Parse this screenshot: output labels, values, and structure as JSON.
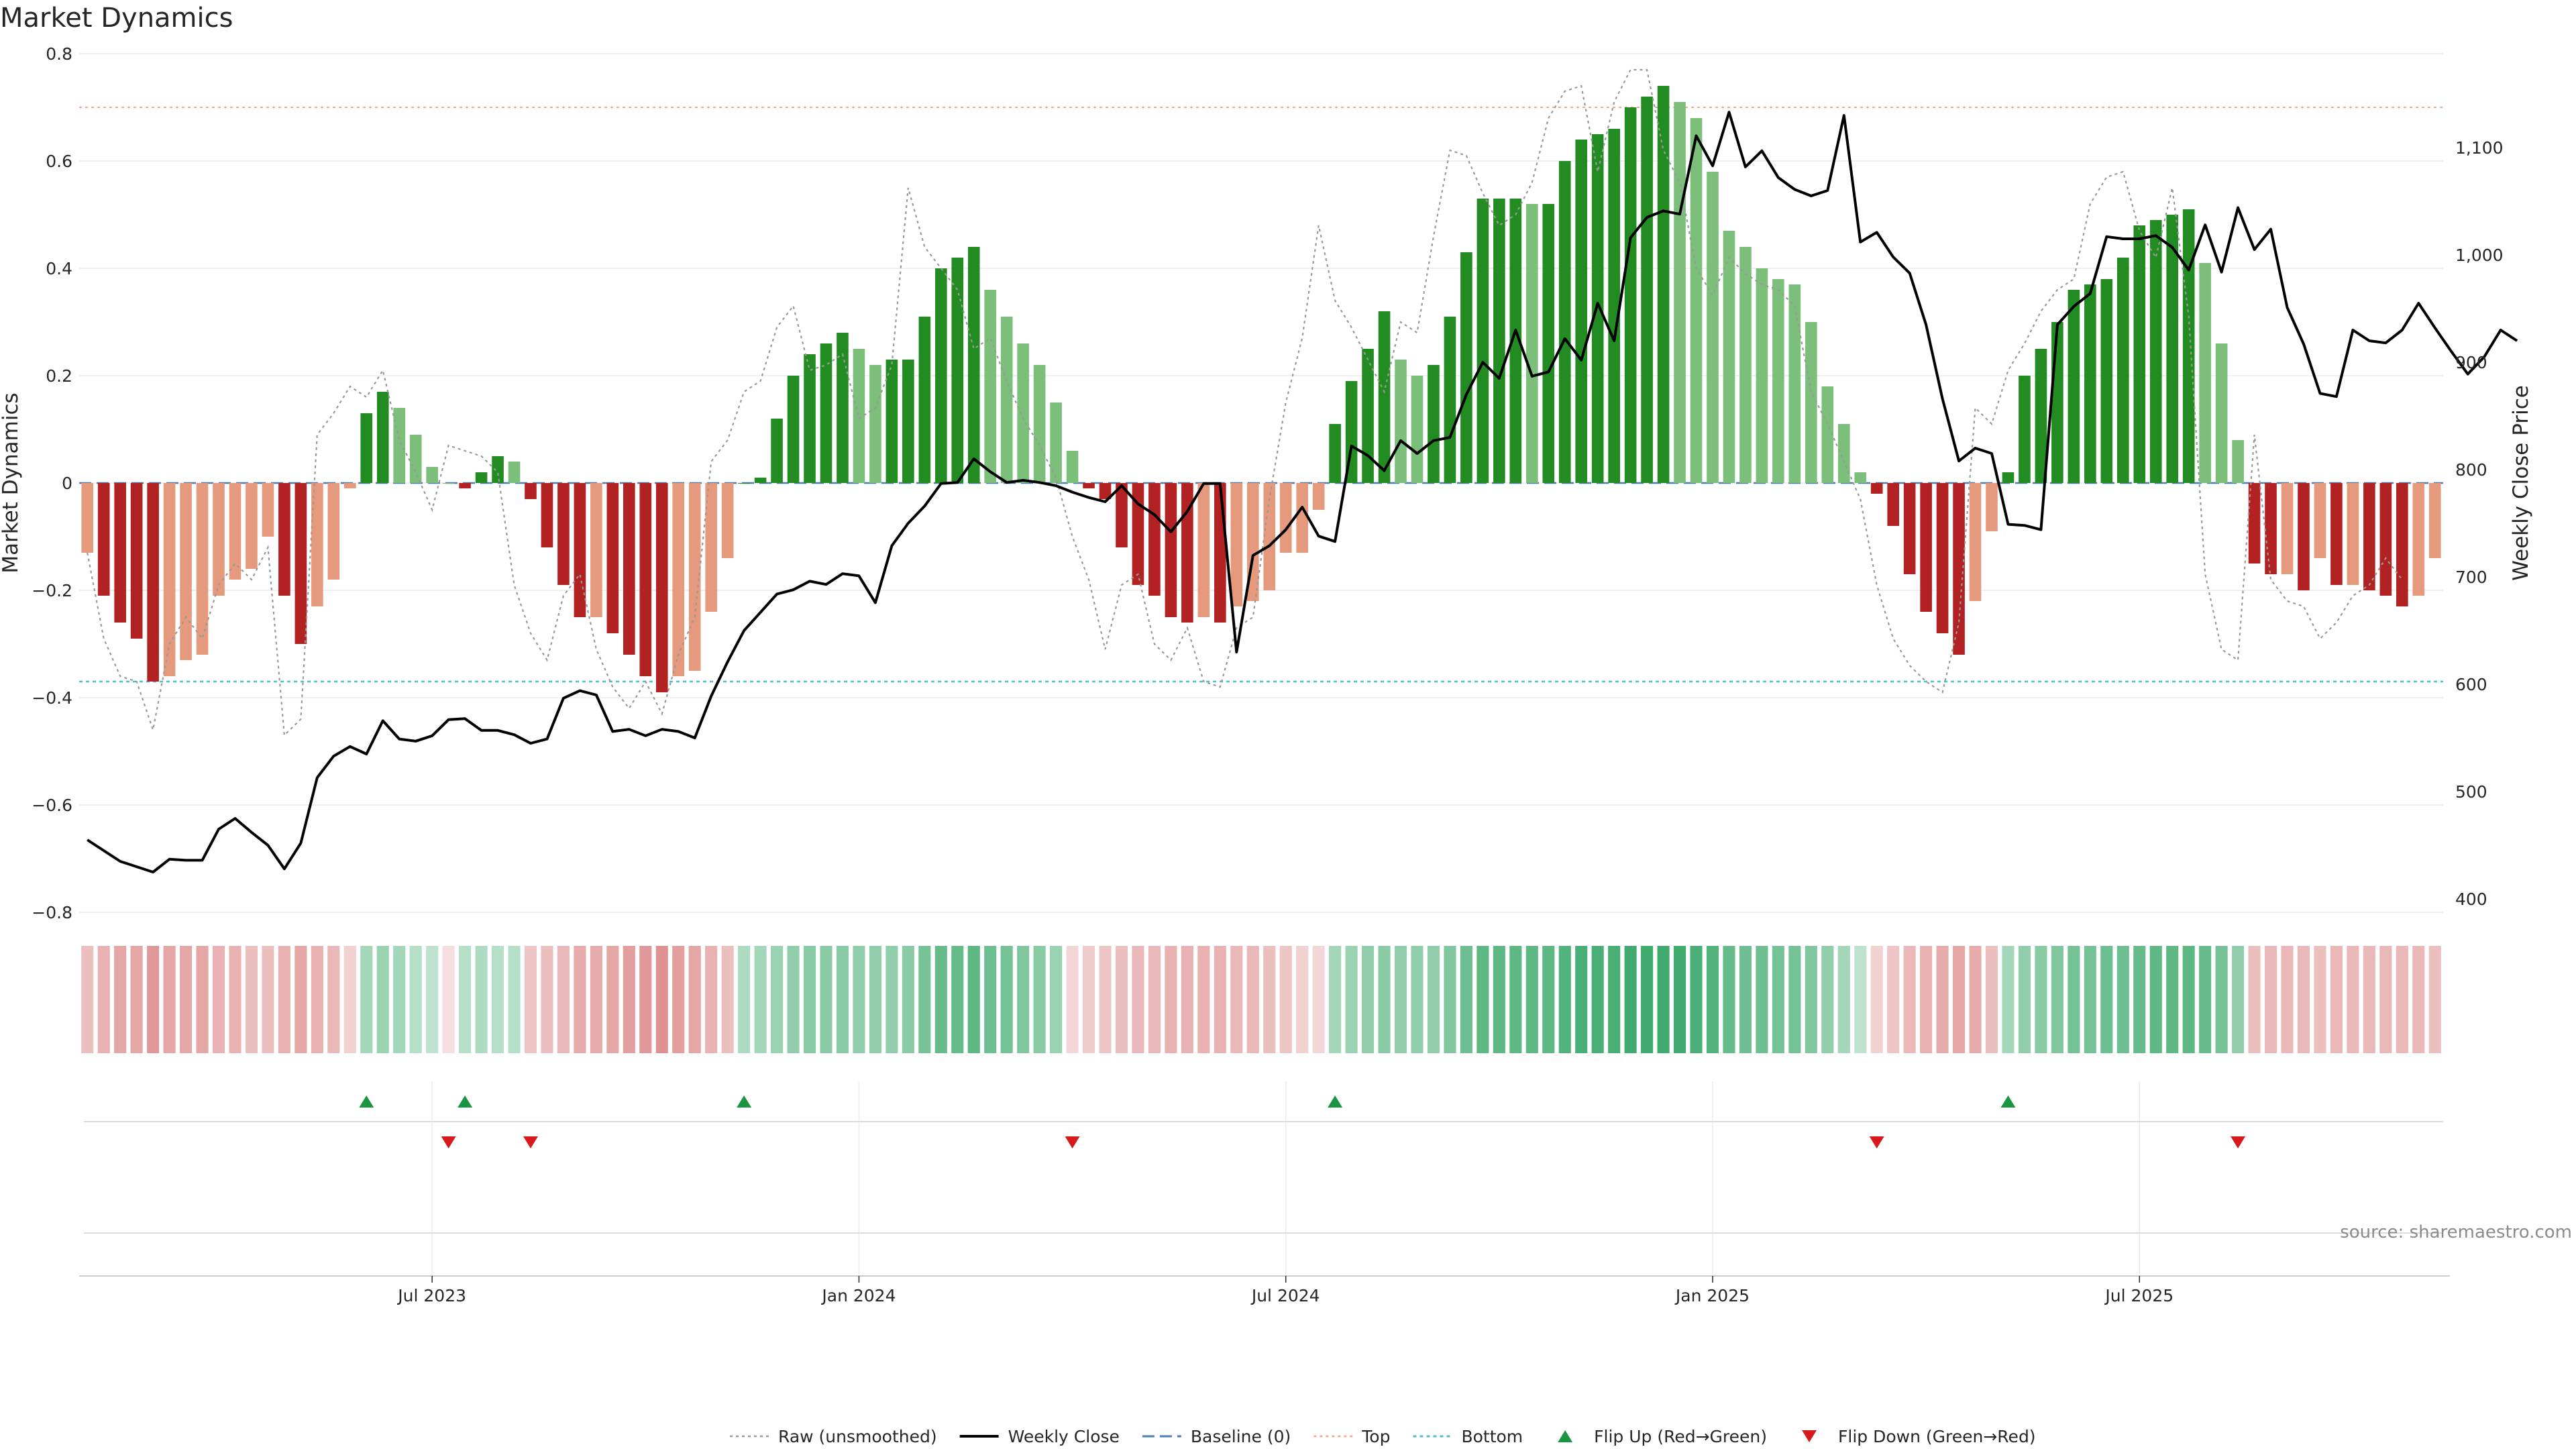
{
  "chart_data": {
    "type": "bar",
    "title": "Market Dynamics",
    "ylabel_left": "Market Dynamics",
    "ylabel_right": "Weekly Close Price",
    "ylim_left": [
      -0.8,
      0.8
    ],
    "ylim_right": [
      400,
      1150
    ],
    "yticks_left": [
      {
        "v": 0.8,
        "label": "0.8"
      },
      {
        "v": 0.6,
        "label": "0.6"
      },
      {
        "v": 0.4,
        "label": "0.4"
      },
      {
        "v": 0.2,
        "label": "0.2"
      },
      {
        "v": 0,
        "label": "0"
      },
      {
        "v": -0.2,
        "label": "−0.2"
      },
      {
        "v": -0.4,
        "label": "−0.4"
      },
      {
        "v": -0.6,
        "label": "−0.6"
      },
      {
        "v": -0.8,
        "label": "−0.8"
      }
    ],
    "yticks_right": [
      {
        "v": 1100,
        "label": "1,100"
      },
      {
        "v": 1000,
        "label": "1,000"
      },
      {
        "v": 900,
        "label": "900"
      },
      {
        "v": 800,
        "label": "800"
      },
      {
        "v": 700,
        "label": "700"
      },
      {
        "v": 600,
        "label": "600"
      },
      {
        "v": 500,
        "label": "500"
      },
      {
        "v": 400,
        "label": "400"
      }
    ],
    "x_ticks": [
      {
        "index": 21,
        "label": "Jul 2023"
      },
      {
        "index": 47,
        "label": "Jan 2024"
      },
      {
        "index": 73,
        "label": "Jul 2024"
      },
      {
        "index": 99,
        "label": "Jan 2025"
      },
      {
        "index": 125,
        "label": "Jul 2025"
      }
    ],
    "grid": true,
    "legend_position": "bottom",
    "top_level": 0.7,
    "bottom_level": -0.37,
    "baseline": 0,
    "weeks": 144,
    "smoothed": [
      -0.13,
      -0.21,
      -0.26,
      -0.29,
      -0.37,
      -0.36,
      -0.33,
      -0.32,
      -0.21,
      -0.18,
      -0.16,
      -0.1,
      -0.21,
      -0.3,
      -0.23,
      -0.18,
      -0.01,
      0.13,
      0.17,
      0.14,
      0.09,
      0.03,
      0,
      -0.01,
      0.02,
      0.05,
      0.04,
      -0.03,
      -0.12,
      -0.19,
      -0.25,
      -0.25,
      -0.28,
      -0.32,
      -0.36,
      -0.39,
      -0.36,
      -0.35,
      -0.24,
      -0.14,
      0,
      0.01,
      0.12,
      0.2,
      0.24,
      0.26,
      0.28,
      0.25,
      0.22,
      0.23,
      0.23,
      0.31,
      0.4,
      0.42,
      0.44,
      0.36,
      0.31,
      0.26,
      0.22,
      0.15,
      0.06,
      -0.01,
      -0.03,
      -0.12,
      -0.19,
      -0.21,
      -0.25,
      -0.26,
      -0.25,
      -0.26,
      -0.23,
      -0.22,
      -0.2,
      -0.13,
      -0.13,
      -0.05,
      0.11,
      0.19,
      0.25,
      0.32,
      0.23,
      0.2,
      0.22,
      0.31,
      0.43,
      0.53,
      0.53,
      0.53,
      0.52,
      0.52,
      0.6,
      0.64,
      0.65,
      0.66,
      0.7,
      0.72,
      0.74,
      0.71,
      0.68,
      0.58,
      0.47,
      0.44,
      0.4,
      0.38,
      0.37,
      0.3,
      0.18,
      0.11,
      0.02,
      -0.02,
      -0.08,
      -0.17,
      -0.24,
      -0.28,
      -0.32,
      -0.22,
      -0.09,
      0.02,
      0.2,
      0.25,
      0.3,
      0.36,
      0.37,
      0.38,
      0.42,
      0.48,
      0.49,
      0.5,
      0.51,
      0.41,
      0.26,
      0.08,
      -0.15,
      -0.17,
      -0.17,
      -0.2,
      -0.14,
      -0.19,
      -0.19,
      -0.2,
      -0.21,
      -0.23,
      -0.21,
      -0.14
    ],
    "raw": [
      -0.13,
      -0.29,
      -0.36,
      -0.37,
      -0.46,
      -0.3,
      -0.25,
      -0.29,
      -0.19,
      -0.15,
      -0.18,
      -0.12,
      -0.47,
      -0.44,
      0.09,
      0.13,
      0.18,
      0.16,
      0.21,
      0.08,
      0.02,
      -0.05,
      0.07,
      0.06,
      0.05,
      0.02,
      -0.19,
      -0.28,
      -0.33,
      -0.21,
      -0.17,
      -0.31,
      -0.38,
      -0.42,
      -0.37,
      -0.43,
      -0.32,
      -0.25,
      0.04,
      0.08,
      0.17,
      0.19,
      0.29,
      0.33,
      0.21,
      0.22,
      0.24,
      0.12,
      0.14,
      0.22,
      0.55,
      0.44,
      0.4,
      0.36,
      0.25,
      0.27,
      0.19,
      0.12,
      0.07,
      0.01,
      -0.1,
      -0.18,
      -0.31,
      -0.19,
      -0.17,
      -0.3,
      -0.33,
      -0.27,
      -0.37,
      -0.38,
      -0.27,
      -0.25,
      -0.03,
      0.15,
      0.27,
      0.48,
      0.34,
      0.29,
      0.23,
      0.17,
      0.3,
      0.28,
      0.46,
      0.62,
      0.61,
      0.54,
      0.48,
      0.5,
      0.56,
      0.68,
      0.73,
      0.74,
      0.58,
      0.71,
      0.77,
      0.77,
      0.62,
      0.56,
      0.4,
      0.35,
      0.42,
      0.39,
      0.37,
      0.36,
      0.33,
      0.17,
      0.11,
      0.04,
      -0.03,
      -0.19,
      -0.29,
      -0.34,
      -0.37,
      -0.39,
      -0.26,
      0.14,
      0.11,
      0.21,
      0.26,
      0.32,
      0.36,
      0.38,
      0.52,
      0.57,
      0.58,
      0.47,
      0.42,
      0.55,
      0.31,
      -0.17,
      -0.31,
      -0.33,
      0.09,
      -0.18,
      -0.22,
      -0.23,
      -0.29,
      -0.26,
      -0.21,
      -0.19,
      -0.14,
      -0.18
    ],
    "close": [
      455,
      445,
      435,
      430,
      425,
      437,
      436,
      436,
      465,
      475,
      462,
      450,
      428,
      452,
      513,
      533,
      542,
      535,
      566,
      549,
      547,
      552,
      567,
      568,
      557,
      557,
      553,
      545,
      549,
      587,
      594,
      590,
      556,
      558,
      552,
      558,
      556,
      550,
      589,
      621,
      650,
      667,
      684,
      688,
      696,
      693,
      703,
      701,
      676,
      729,
      750,
      766,
      787,
      788,
      810,
      798,
      788,
      790,
      788,
      785,
      779,
      774,
      770,
      785,
      768,
      758,
      742,
      761,
      787,
      787,
      630,
      720,
      729,
      744,
      765,
      738,
      733,
      822,
      813,
      799,
      827,
      815,
      827,
      830,
      870,
      900,
      885,
      930,
      887,
      891,
      922,
      902,
      955,
      920,
      1016,
      1035,
      1041,
      1038,
      1111,
      1083,
      1133,
      1082,
      1097,
      1072,
      1061,
      1055,
      1060,
      1130,
      1012,
      1021,
      998,
      983,
      935,
      866,
      808,
      820,
      815,
      749,
      748,
      744,
      935,
      952,
      964,
      1017,
      1015,
      1015,
      1018,
      1007,
      986,
      1028,
      984,
      1044,
      1005,
      1024,
      951,
      917,
      871,
      868,
      930,
      920,
      918,
      930,
      955,
      932,
      910,
      889,
      905,
      930,
      920
    ],
    "heatmap_trend": [
      -0.3,
      -0.4,
      -0.5,
      -0.5,
      -0.6,
      -0.5,
      -0.5,
      -0.5,
      -0.4,
      -0.4,
      -0.3,
      -0.3,
      -0.4,
      -0.5,
      -0.4,
      -0.35,
      -0.15,
      0.3,
      0.35,
      0.3,
      0.2,
      0.15,
      -0.05,
      0.2,
      0.25,
      0.2,
      0.2,
      -0.25,
      -0.3,
      -0.35,
      -0.45,
      -0.45,
      -0.5,
      -0.55,
      -0.6,
      -0.65,
      -0.55,
      -0.5,
      -0.4,
      -0.3,
      0.25,
      0.3,
      0.35,
      0.4,
      0.45,
      0.45,
      0.45,
      0.4,
      0.4,
      0.4,
      0.45,
      0.55,
      0.65,
      0.65,
      0.7,
      0.6,
      0.55,
      0.5,
      0.45,
      0.35,
      -0.1,
      -0.2,
      -0.25,
      -0.3,
      -0.35,
      -0.35,
      -0.4,
      -0.4,
      -0.4,
      -0.4,
      -0.35,
      -0.35,
      -0.3,
      -0.25,
      -0.15,
      -0.1,
      0.3,
      0.35,
      0.4,
      0.45,
      0.4,
      0.4,
      0.4,
      0.5,
      0.6,
      0.7,
      0.7,
      0.7,
      0.7,
      0.7,
      0.75,
      0.8,
      0.8,
      0.8,
      0.85,
      0.85,
      0.85,
      0.85,
      0.8,
      0.75,
      0.65,
      0.6,
      0.6,
      0.55,
      0.55,
      0.5,
      0.4,
      0.3,
      0.15,
      -0.15,
      -0.25,
      -0.35,
      -0.4,
      -0.45,
      -0.5,
      -0.45,
      -0.3,
      0.3,
      0.4,
      0.45,
      0.5,
      0.55,
      0.55,
      0.6,
      0.6,
      0.65,
      0.7,
      0.7,
      0.7,
      0.65,
      0.55,
      0.4,
      -0.3,
      -0.35,
      -0.35,
      -0.35,
      -0.3,
      -0.35,
      -0.35,
      -0.35,
      -0.35,
      -0.35,
      -0.35,
      -0.3
    ],
    "flips_up": [
      17,
      23,
      40,
      76,
      117
    ],
    "flips_down": [
      22,
      27,
      60,
      109,
      131
    ],
    "colors": {
      "pos_strong": "#228b22",
      "pos_weak": "#7bbf7b",
      "neg_strong": "#b22222",
      "neg_weak": "#e59a7e",
      "close_line": "#000000",
      "raw_line": "#999999",
      "baseline": "#4a7fb8",
      "top": "#f4a582",
      "bottom": "#4dbfd4",
      "flip_up": "#1a9641",
      "flip_down": "#d7191c",
      "heat_pos": "#2ca25f",
      "heat_neg": "#d46a6a"
    }
  },
  "legend": [
    {
      "key": "raw",
      "label": "Raw (unsmoothed)"
    },
    {
      "key": "close",
      "label": "Weekly Close"
    },
    {
      "key": "baseline",
      "label": "Baseline (0)"
    },
    {
      "key": "top",
      "label": "Top"
    },
    {
      "key": "bottom",
      "label": "Bottom"
    },
    {
      "key": "flip_up",
      "label": "Flip Up (Red→Green)"
    },
    {
      "key": "flip_down",
      "label": "Flip Down (Green→Red)"
    }
  ],
  "source": "source: sharemaestro.com"
}
